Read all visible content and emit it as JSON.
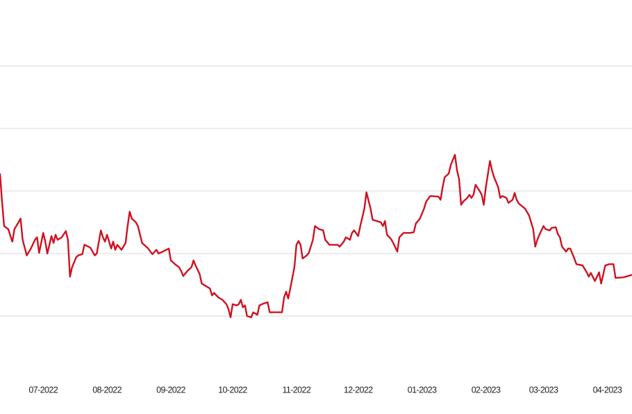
{
  "chart_data": {
    "type": "line",
    "xlim": [
      -21,
      286
    ],
    "xticks": [
      {
        "value": 0,
        "label": "07-2022"
      },
      {
        "value": 31,
        "label": "08-2022"
      },
      {
        "value": 62,
        "label": "09-2022"
      },
      {
        "value": 92,
        "label": "10-2022"
      },
      {
        "value": 123,
        "label": "11-2022"
      },
      {
        "value": 153,
        "label": "12-2022"
      },
      {
        "value": 184,
        "label": "01-2023"
      },
      {
        "value": 215,
        "label": "02-2023"
      },
      {
        "value": 243,
        "label": "03-2023"
      },
      {
        "value": 274,
        "label": "04-2023"
      }
    ],
    "ylim": [
      0,
      60
    ],
    "yticks": [
      10,
      20,
      30,
      40,
      50
    ],
    "grid": true,
    "x": [
      -21,
      -20,
      -19,
      -17,
      -15,
      -14,
      -12,
      -11,
      -10,
      -8,
      -6,
      -4,
      -3,
      -2,
      -1,
      0,
      1,
      2,
      4,
      5,
      6,
      7,
      9,
      11,
      12,
      13,
      14,
      16,
      17,
      19,
      20,
      22,
      23,
      25,
      26,
      28,
      29,
      30,
      31,
      33,
      34,
      35,
      36,
      38,
      40,
      41,
      42,
      43,
      45,
      46,
      48,
      50,
      51,
      53,
      55,
      56,
      58,
      61,
      62,
      64,
      66,
      67,
      68,
      70,
      72,
      73,
      74,
      76,
      77,
      79,
      81,
      82,
      83,
      85,
      87,
      89,
      90,
      91,
      92,
      94,
      95,
      96,
      97,
      98,
      99,
      100,
      101,
      102,
      104,
      105,
      107,
      109,
      110,
      114,
      116,
      117,
      118,
      119,
      120,
      121,
      122,
      123,
      124,
      125,
      126,
      128,
      129,
      131,
      132,
      134,
      136,
      137,
      139,
      143,
      144,
      146,
      147,
      149,
      150,
      151,
      153,
      154,
      156,
      157,
      159,
      160,
      162,
      164,
      165,
      166,
      167,
      169,
      170,
      172,
      173,
      175,
      178,
      180,
      181,
      183,
      185,
      186,
      188,
      192,
      193,
      194,
      195,
      197,
      198,
      200,
      201,
      202,
      203,
      204,
      206,
      207,
      208,
      209,
      210,
      212,
      213,
      214,
      215,
      217,
      218,
      219,
      221,
      222,
      223,
      225,
      226,
      228,
      229,
      230,
      231,
      234,
      236,
      238,
      239,
      240,
      241,
      243,
      244,
      246,
      247,
      249,
      250,
      251,
      252,
      254,
      255,
      256,
      258,
      259,
      262,
      264,
      265,
      266,
      268,
      269,
      270,
      271,
      272,
      273,
      275,
      277,
      278,
      282,
      286
    ],
    "series": [
      {
        "color": "#d0101e",
        "values": [
          32.8,
          28.3,
          24.4,
          23.9,
          21.9,
          23.9,
          25,
          25.6,
          22.2,
          19.7,
          20.8,
          22.2,
          22.6,
          20.1,
          21.7,
          23.3,
          21.9,
          20,
          22.8,
          21.7,
          23,
          22.2,
          22.6,
          23.6,
          22.2,
          16.3,
          17.8,
          19.4,
          19.7,
          19.9,
          21.4,
          21.1,
          20.9,
          19.7,
          20,
          23.7,
          22.6,
          21.9,
          23,
          20.8,
          21.9,
          20.6,
          21.4,
          20.6,
          21.7,
          24.4,
          26.7,
          25.6,
          25,
          24.4,
          21.7,
          21.1,
          20.8,
          19.9,
          20.6,
          20,
          20.3,
          20.8,
          18.9,
          18.3,
          17.8,
          17.2,
          16.4,
          17.2,
          17.8,
          18.9,
          18.1,
          16.7,
          15.2,
          14.8,
          14.4,
          13.3,
          13.7,
          13,
          12.6,
          11.9,
          11.1,
          9.8,
          11.9,
          11.7,
          11.9,
          12.6,
          11.4,
          11.7,
          10,
          9.9,
          9.8,
          10.6,
          10.2,
          11.7,
          12,
          12.2,
          10.6,
          10.6,
          10.6,
          13,
          13.9,
          12.8,
          14.4,
          16.1,
          17.8,
          21.4,
          22,
          21.4,
          19.2,
          19.7,
          20.1,
          22.2,
          24.4,
          23.9,
          23.7,
          22.2,
          21.4,
          21.4,
          21.1,
          21.9,
          22.6,
          22.2,
          23.3,
          23.7,
          22.8,
          24.4,
          27.2,
          29.8,
          27.2,
          25.4,
          25.2,
          25,
          24.4,
          25.2,
          23,
          22.3,
          21.7,
          20.3,
          22.6,
          23.3,
          23.3,
          23.4,
          24.8,
          25.6,
          27.2,
          28.3,
          29.2,
          29.1,
          28.6,
          30.6,
          32.2,
          32.8,
          34.2,
          35.8,
          33.3,
          31.9,
          27.8,
          28.3,
          28.9,
          29.4,
          28.9,
          29.4,
          31,
          30,
          29.4,
          27.8,
          30.6,
          34.8,
          33.3,
          32.2,
          30.6,
          28.9,
          29.2,
          28.9,
          28.1,
          28.6,
          29.7,
          28.6,
          28,
          27.2,
          26.1,
          23.9,
          21.1,
          22.2,
          23,
          24.4,
          23.9,
          23.7,
          24.1,
          24.2,
          23.1,
          22.6,
          21.1,
          20.3,
          20.8,
          20.8,
          19.2,
          18.3,
          18.1,
          17,
          16.3,
          16.9,
          15.6,
          16.3,
          17,
          15.2,
          16.6,
          18.1,
          18.3,
          18.3,
          16.1,
          16.2,
          16.6
        ]
      }
    ]
  }
}
